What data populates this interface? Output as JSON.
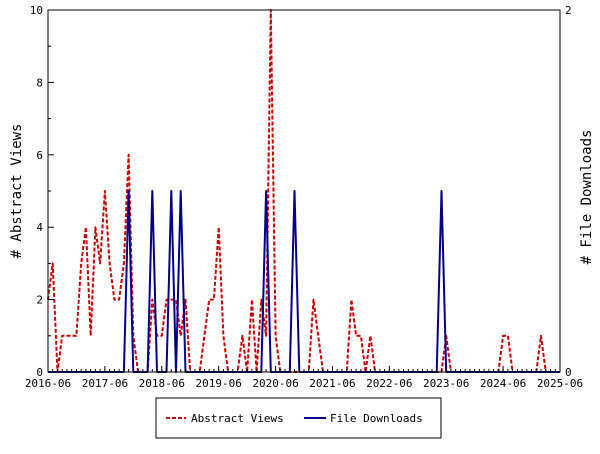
{
  "chart_data": {
    "type": "line",
    "x_axis": {
      "ticks": [
        "2016-06",
        "2017-06",
        "2018-06",
        "2019-06",
        "2020-06",
        "2021-06",
        "2022-06",
        "2023-06",
        "2024-06",
        "2025-06"
      ],
      "range": [
        "2016-06",
        "2025-06"
      ]
    },
    "y_left": {
      "label": "# Abstract Views",
      "range": [
        0,
        10
      ],
      "ticks": [
        "0",
        "2",
        "4",
        "6",
        "8",
        "10"
      ]
    },
    "y_right": {
      "label": "# File Downloads",
      "range": [
        0,
        2
      ],
      "ticks": [
        "0",
        "2"
      ]
    },
    "grid": false,
    "legend_placement": "bottom-center",
    "series": [
      {
        "name": "Abstract Views",
        "axis": "left",
        "color": "#cc0000",
        "dash": "dashed",
        "points": [
          [
            "2016-06",
            2
          ],
          [
            "2016-07",
            3
          ],
          [
            "2016-08",
            0
          ],
          [
            "2016-09",
            1
          ],
          [
            "2016-10",
            1
          ],
          [
            "2016-11",
            1
          ],
          [
            "2016-12",
            1
          ],
          [
            "2017-01",
            3
          ],
          [
            "2017-02",
            4
          ],
          [
            "2017-03",
            1
          ],
          [
            "2017-04",
            4
          ],
          [
            "2017-05",
            3
          ],
          [
            "2017-06",
            5
          ],
          [
            "2017-07",
            3
          ],
          [
            "2017-08",
            2
          ],
          [
            "2017-09",
            2
          ],
          [
            "2017-10",
            3
          ],
          [
            "2017-11",
            6
          ],
          [
            "2017-12",
            1
          ],
          [
            "2018-01",
            0
          ],
          [
            "2018-02",
            0
          ],
          [
            "2018-03",
            0
          ],
          [
            "2018-04",
            2
          ],
          [
            "2018-05",
            1
          ],
          [
            "2018-06",
            1
          ],
          [
            "2018-07",
            2
          ],
          [
            "2018-08",
            2
          ],
          [
            "2018-09",
            2
          ],
          [
            "2018-10",
            1
          ],
          [
            "2018-11",
            2
          ],
          [
            "2018-12",
            0
          ],
          [
            "2019-01",
            0
          ],
          [
            "2019-02",
            0
          ],
          [
            "2019-03",
            1
          ],
          [
            "2019-04",
            2
          ],
          [
            "2019-05",
            2
          ],
          [
            "2019-06",
            4
          ],
          [
            "2019-07",
            1
          ],
          [
            "2019-08",
            0
          ],
          [
            "2019-09",
            0
          ],
          [
            "2019-10",
            0
          ],
          [
            "2019-11",
            1
          ],
          [
            "2019-12",
            0
          ],
          [
            "2020-01",
            2
          ],
          [
            "2020-02",
            0
          ],
          [
            "2020-03",
            2
          ],
          [
            "2020-04",
            1
          ],
          [
            "2020-05",
            10
          ],
          [
            "2020-06",
            1
          ],
          [
            "2020-07",
            0
          ],
          [
            "2020-08",
            0
          ],
          [
            "2020-09",
            0
          ],
          [
            "2020-10",
            0
          ],
          [
            "2020-11",
            0
          ],
          [
            "2020-12",
            0
          ],
          [
            "2021-01",
            0
          ],
          [
            "2021-02",
            2
          ],
          [
            "2021-03",
            1
          ],
          [
            "2021-04",
            0
          ],
          [
            "2021-05",
            0
          ],
          [
            "2021-06",
            0
          ],
          [
            "2021-07",
            0
          ],
          [
            "2021-08",
            0
          ],
          [
            "2021-09",
            0
          ],
          [
            "2021-10",
            2
          ],
          [
            "2021-11",
            1
          ],
          [
            "2021-12",
            1
          ],
          [
            "2022-01",
            0
          ],
          [
            "2022-02",
            1
          ],
          [
            "2022-03",
            0
          ],
          [
            "2022-04",
            0
          ],
          [
            "2022-05",
            0
          ],
          [
            "2022-06",
            0
          ],
          [
            "2022-07",
            0
          ],
          [
            "2022-08",
            0
          ],
          [
            "2022-09",
            0
          ],
          [
            "2022-10",
            0
          ],
          [
            "2022-11",
            0
          ],
          [
            "2022-12",
            0
          ],
          [
            "2023-01",
            0
          ],
          [
            "2023-02",
            0
          ],
          [
            "2023-03",
            0
          ],
          [
            "2023-04",
            0
          ],
          [
            "2023-05",
            0
          ],
          [
            "2023-06",
            1
          ],
          [
            "2023-07",
            0
          ],
          [
            "2023-08",
            0
          ],
          [
            "2023-09",
            0
          ],
          [
            "2023-10",
            0
          ],
          [
            "2023-11",
            0
          ],
          [
            "2023-12",
            0
          ],
          [
            "2024-01",
            0
          ],
          [
            "2024-02",
            0
          ],
          [
            "2024-03",
            0
          ],
          [
            "2024-04",
            0
          ],
          [
            "2024-05",
            0
          ],
          [
            "2024-06",
            1
          ],
          [
            "2024-07",
            1
          ],
          [
            "2024-08",
            0
          ],
          [
            "2024-09",
            0
          ],
          [
            "2024-10",
            0
          ],
          [
            "2024-11",
            0
          ],
          [
            "2024-12",
            0
          ],
          [
            "2025-01",
            0
          ],
          [
            "2025-02",
            1
          ],
          [
            "2025-03",
            0
          ],
          [
            "2025-04",
            0
          ],
          [
            "2025-05",
            0
          ],
          [
            "2025-06",
            0
          ],
          [
            "2025-07",
            0
          ]
        ]
      },
      {
        "name": "File Downloads",
        "axis": "right",
        "color": "#00008b",
        "dash": "solid",
        "points": [
          [
            "2016-06",
            0
          ],
          [
            "2017-10",
            0
          ],
          [
            "2017-11",
            1
          ],
          [
            "2017-12",
            0
          ],
          [
            "2018-03",
            0
          ],
          [
            "2018-04",
            1
          ],
          [
            "2018-05",
            0
          ],
          [
            "2018-07",
            0
          ],
          [
            "2018-08",
            1
          ],
          [
            "2018-09",
            0
          ],
          [
            "2018-10",
            1
          ],
          [
            "2018-11",
            0
          ],
          [
            "2020-03",
            0
          ],
          [
            "2020-04",
            1
          ],
          [
            "2020-05",
            0
          ],
          [
            "2020-09",
            0
          ],
          [
            "2020-10",
            1
          ],
          [
            "2020-11",
            0
          ],
          [
            "2023-04",
            0
          ],
          [
            "2023-05",
            1
          ],
          [
            "2023-06",
            0
          ],
          [
            "2025-07",
            0
          ]
        ]
      }
    ]
  }
}
